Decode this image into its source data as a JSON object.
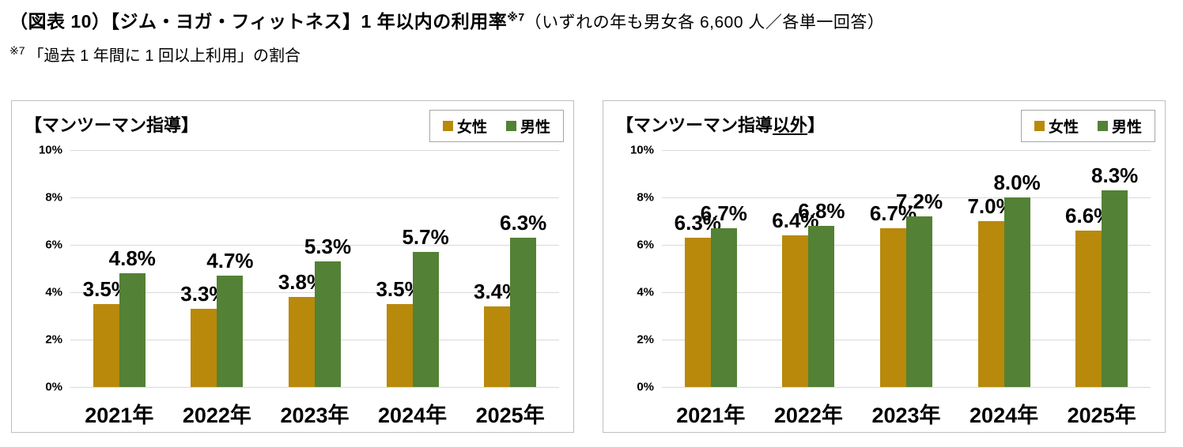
{
  "header": {
    "title_bold": "（図表 10）【ジム・ヨガ・フィットネス】1 年以内の利用率",
    "title_sup": "※7",
    "title_paren": "（いずれの年も男女各 6,600 人／各単一回答）",
    "note_sup": "※7",
    "note_text": "「過去 1 年間に 1 回以上利用」の割合"
  },
  "colors": {
    "female": "#B8890B",
    "male": "#538135",
    "gridline": "#D9D9D9",
    "panel_border": "#BFBFBF",
    "legend_border": "#A6A6A6"
  },
  "chart_data": [
    {
      "type": "bar",
      "title": "【マンツーマン指導】",
      "title_parts": {
        "pre": "【マンツーマン指導",
        "underline": "",
        "post": "】"
      },
      "categories": [
        "2021年",
        "2022年",
        "2023年",
        "2024年",
        "2025年"
      ],
      "series": [
        {
          "name": "女性",
          "key": "female",
          "color_key": "female",
          "values": [
            3.5,
            3.3,
            3.8,
            3.5,
            3.4
          ],
          "labels": [
            "3.5%",
            "3.3%",
            "3.8%",
            "3.5%",
            "3.4%"
          ]
        },
        {
          "name": "男性",
          "key": "male",
          "color_key": "male",
          "values": [
            4.8,
            4.7,
            5.3,
            5.7,
            6.3
          ],
          "labels": [
            "4.8%",
            "4.7%",
            "5.3%",
            "5.7%",
            "6.3%"
          ]
        }
      ],
      "xlabel": "",
      "ylabel": "",
      "ylim": [
        0,
        10
      ],
      "yticks": [
        "0%",
        "2%",
        "4%",
        "6%",
        "8%",
        "10%"
      ],
      "grid": true,
      "legend_position": "top-right"
    },
    {
      "type": "bar",
      "title": "【マンツーマン指導以外】",
      "title_parts": {
        "pre": "【マンツーマン指導",
        "underline": "以外",
        "post": "】"
      },
      "categories": [
        "2021年",
        "2022年",
        "2023年",
        "2024年",
        "2025年"
      ],
      "series": [
        {
          "name": "女性",
          "key": "female",
          "color_key": "female",
          "values": [
            6.3,
            6.4,
            6.7,
            7.0,
            6.6
          ],
          "labels": [
            "6.3%",
            "6.4%",
            "6.7%",
            "7.0%",
            "6.6%"
          ]
        },
        {
          "name": "男性",
          "key": "male",
          "color_key": "male",
          "values": [
            6.7,
            6.8,
            7.2,
            8.0,
            8.3
          ],
          "labels": [
            "6.7%",
            "6.8%",
            "7.2%",
            "8.0%",
            "8.3%"
          ]
        }
      ],
      "xlabel": "",
      "ylabel": "",
      "ylim": [
        0,
        10
      ],
      "yticks": [
        "0%",
        "2%",
        "4%",
        "6%",
        "8%",
        "10%"
      ],
      "grid": true,
      "legend_position": "top-right"
    }
  ]
}
